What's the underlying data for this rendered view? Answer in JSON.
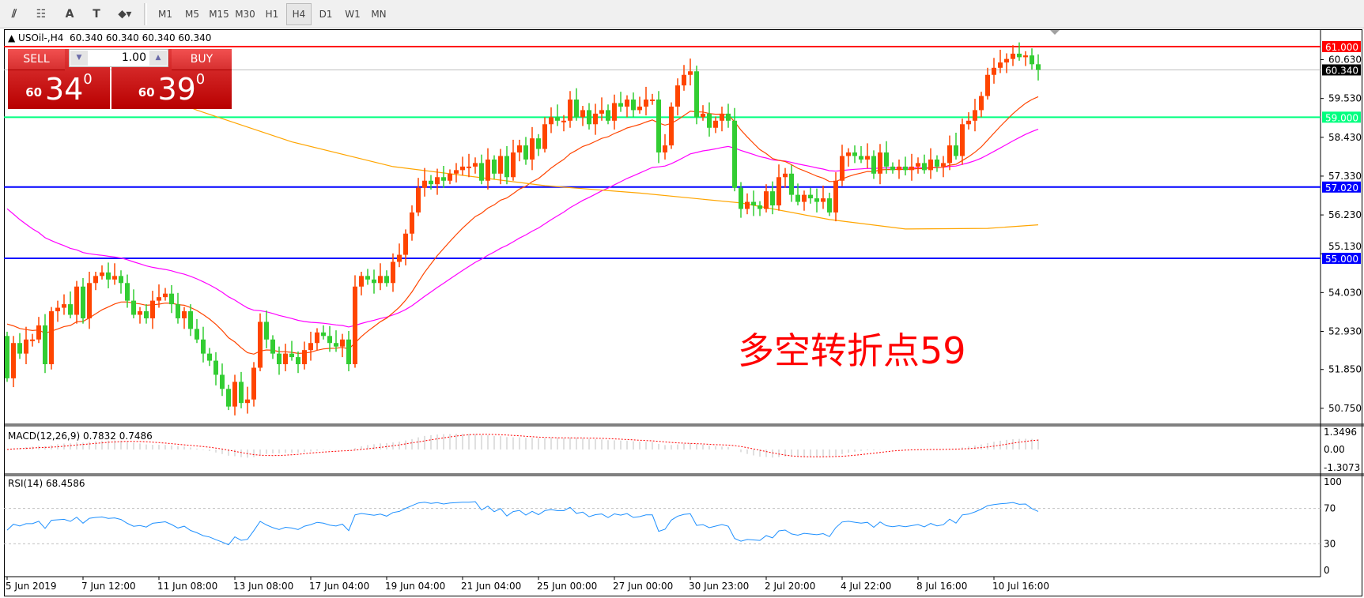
{
  "toolbar": {
    "icons": [
      "elliott-wave-icon",
      "fibonacci-fan-icon",
      "text-label-icon",
      "text-box-icon",
      "arrows-icon"
    ],
    "icon_glyphs": [
      "⫽",
      "☷",
      "A",
      "T",
      "⬥▾"
    ],
    "periods": [
      "M1",
      "M5",
      "M15",
      "M30",
      "H1",
      "H4",
      "D1",
      "W1",
      "MN"
    ],
    "active_period": "H4"
  },
  "chart_header": {
    "symbol": "USOil-,H4",
    "ohlc": "60.340 60.340 60.340 60.340"
  },
  "trade_panel": {
    "sell_label": "SELL",
    "buy_label": "BUY",
    "lot": "1.00",
    "sell_prefix": "60",
    "sell_main": "34",
    "sell_sup": "0",
    "buy_prefix": "60",
    "buy_main": "39",
    "buy_sup": "0"
  },
  "annotation": "多空转折点59",
  "colors": {
    "up": "#ff4500",
    "down": "#32cd32",
    "ma_fast": "#ff4500",
    "ma_mid": "#ff00ff",
    "ma_slow": "#ffa500",
    "rsi": "#1e90ff",
    "macd_signal": "#ff0000",
    "macd_hist": "#c0c0c0"
  },
  "price_axis": {
    "ticks": [
      "60.630",
      "59.530",
      "58.430",
      "57.330",
      "56.230",
      "55.130",
      "54.030",
      "52.930",
      "51.850",
      "50.750"
    ],
    "bid_label": "60.340",
    "levels": [
      {
        "price": 61.0,
        "label": "61.000",
        "color": "#ff0000"
      },
      {
        "price": 59.0,
        "label": "59.000",
        "color": "#00ff7f"
      },
      {
        "price": 57.02,
        "label": "57.020",
        "color": "#0000ff"
      },
      {
        "price": 55.0,
        "label": "55.000",
        "color": "#0000ff"
      }
    ]
  },
  "chart_data": {
    "type": "candlestick",
    "closes": [
      51.6,
      52.6,
      52.3,
      52.7,
      52.7,
      53.1,
      52.0,
      53.5,
      53.6,
      53.7,
      53.4,
      54.2,
      53.3,
      54.3,
      54.5,
      54.6,
      54.4,
      54.5,
      54.3,
      53.8,
      53.4,
      53.5,
      53.3,
      53.8,
      53.9,
      54.0,
      53.7,
      53.3,
      53.5,
      53.0,
      52.7,
      52.3,
      52.1,
      51.7,
      51.3,
      50.8,
      51.5,
      50.9,
      51.0,
      51.9,
      53.2,
      52.7,
      52.3,
      52.0,
      52.3,
      52.2,
      52.0,
      52.4,
      52.6,
      52.9,
      52.8,
      52.6,
      52.5,
      52.7,
      52.0,
      54.2,
      54.5,
      54.4,
      54.3,
      54.5,
      54.3,
      54.9,
      55.1,
      55.7,
      56.3,
      57.0,
      57.2,
      57.1,
      57.3,
      57.2,
      57.4,
      57.5,
      57.6,
      57.6,
      57.7,
      57.2,
      57.8,
      57.4,
      57.9,
      57.3,
      58.0,
      58.2,
      57.8,
      58.4,
      58.1,
      58.8,
      59.0,
      58.9,
      58.9,
      59.5,
      59.0,
      59.2,
      58.8,
      59.1,
      59.2,
      58.9,
      59.4,
      59.3,
      59.5,
      59.2,
      59.3,
      59.5,
      59.5,
      58.0,
      58.2,
      59.3,
      59.9,
      60.2,
      60.3,
      59.0,
      59.1,
      58.7,
      58.9,
      59.1,
      58.9,
      57.0,
      56.4,
      56.6,
      56.5,
      56.4,
      56.9,
      56.5,
      57.3,
      57.4,
      56.8,
      56.6,
      56.8,
      56.7,
      56.6,
      56.7,
      56.3,
      57.2,
      57.9,
      58.0,
      57.9,
      57.8,
      57.9,
      57.4,
      58.0,
      57.6,
      57.5,
      57.6,
      57.5,
      57.6,
      57.7,
      57.5,
      57.8,
      57.6,
      57.7,
      58.2,
      57.9,
      58.8,
      58.9,
      59.2,
      59.6,
      60.2,
      60.4,
      60.55,
      60.65,
      60.8,
      60.7,
      60.75,
      60.5,
      60.34
    ],
    "ma_slow_points": [
      [
        20,
        59.9
      ],
      [
        30,
        59.2
      ],
      [
        45,
        58.3
      ],
      [
        61,
        57.6
      ],
      [
        85,
        57.06
      ],
      [
        100,
        56.85
      ],
      [
        116,
        56.57
      ],
      [
        130,
        56.1
      ],
      [
        142,
        55.83
      ],
      [
        155,
        55.85
      ],
      [
        163,
        55.95
      ]
    ],
    "time_labels": [
      "5 Jun 2019",
      "7 Jun 12:00",
      "11 Jun 08:00",
      "13 Jun 08:00",
      "17 Jun 04:00",
      "19 Jun 04:00",
      "21 Jun 04:00",
      "25 Jun 00:00",
      "27 Jun 00:00",
      "30 Jun 23:00",
      "2 Jul 20:00",
      "4 Jul 22:00",
      "8 Jul 16:00",
      "10 Jul 16:00"
    ],
    "ylim": [
      50.4,
      61.5
    ]
  },
  "macd": {
    "title": "MACD(12,26,9) 0.7832 0.7486",
    "ticks": [
      "1.3496",
      "0.00",
      "-1.3073"
    ],
    "range": [
      -1.3073,
      1.3496
    ]
  },
  "rsi": {
    "title": "RSI(14) 68.4586",
    "ticks": [
      "100",
      "70",
      "30",
      "0"
    ],
    "levels": [
      70,
      30
    ]
  }
}
